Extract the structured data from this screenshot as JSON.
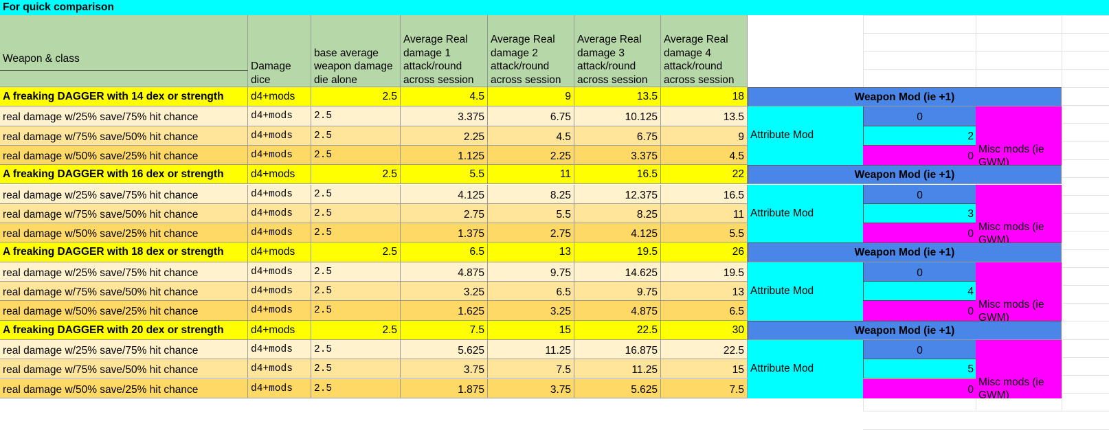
{
  "banner": "For quick comparison",
  "headers": {
    "weapon_class": "Weapon & class",
    "damage_dice": "Damage dice",
    "base_avg": "base average weapon damage die alone",
    "avg1": "Average Real damage 1 attack/round across session",
    "avg2": "Average Real damage 2 attack/round across session",
    "avg3": "Average Real damage 3 attack/round across session",
    "avg4": "Average Real damage 4 attack/round across session"
  },
  "mod_labels": {
    "weapon_mod": "Weapon Mod (ie +1)",
    "attribute_mod": "Attribute Mod",
    "misc_mods": "Misc mods (ie GWM)"
  },
  "colors": {
    "banner": "#00ffff",
    "header": "#b6d7a8",
    "main_row": "#ffff00",
    "sub_row_1": "#fff2cc",
    "sub_row_2": "#ffe599",
    "sub_row_3": "#ffd966",
    "weapon_mod": "#4a86e8",
    "attribute_mod": "#00ffff",
    "misc_mods": "#ff00ff"
  },
  "groups": [
    {
      "title": "A freaking DAGGER with 14 dex or strength",
      "dice": "d4+mods",
      "base": "2.5",
      "avg": [
        "4.5",
        "9",
        "13.5",
        "18"
      ],
      "weapon_mod_value": "0",
      "attribute_mod_value": "2",
      "misc_mods_value": "0",
      "rows": [
        {
          "label": "real damage w/25% save/75% hit chance",
          "dice": "d4+mods",
          "base": "2.5",
          "vals": [
            "3.375",
            "6.75",
            "10.125",
            "13.5"
          ]
        },
        {
          "label": "real damage w/75% save/50% hit chance",
          "dice": "d4+mods",
          "base": "2.5",
          "vals": [
            "2.25",
            "4.5",
            "6.75",
            "9"
          ]
        },
        {
          "label": "real damage w/50% save/25% hit chance",
          "dice": "d4+mods",
          "base": "2.5",
          "vals": [
            "1.125",
            "2.25",
            "3.375",
            "4.5"
          ]
        }
      ]
    },
    {
      "title": "A freaking DAGGER with 16 dex or strength",
      "dice": "d4+mods",
      "base": "2.5",
      "avg": [
        "5.5",
        "11",
        "16.5",
        "22"
      ],
      "weapon_mod_value": "0",
      "attribute_mod_value": "3",
      "misc_mods_value": "0",
      "rows": [
        {
          "label": "real damage w/25% save/75% hit chance",
          "dice": "d4+mods",
          "base": "2.5",
          "vals": [
            "4.125",
            "8.25",
            "12.375",
            "16.5"
          ]
        },
        {
          "label": "real damage w/75% save/50% hit chance",
          "dice": "d4+mods",
          "base": "2.5",
          "vals": [
            "2.75",
            "5.5",
            "8.25",
            "11"
          ]
        },
        {
          "label": "real damage w/50% save/25% hit chance",
          "dice": "d4+mods",
          "base": "2.5",
          "vals": [
            "1.375",
            "2.75",
            "4.125",
            "5.5"
          ]
        }
      ]
    },
    {
      "title": "A freaking DAGGER with 18 dex or strength",
      "dice": "d4+mods",
      "base": "2.5",
      "avg": [
        "6.5",
        "13",
        "19.5",
        "26"
      ],
      "weapon_mod_value": "0",
      "attribute_mod_value": "4",
      "misc_mods_value": "0",
      "rows": [
        {
          "label": "real damage w/25% save/75% hit chance",
          "dice": "d4+mods",
          "base": "2.5",
          "vals": [
            "4.875",
            "9.75",
            "14.625",
            "19.5"
          ]
        },
        {
          "label": "real damage w/75% save/50% hit chance",
          "dice": "d4+mods",
          "base": "2.5",
          "vals": [
            "3.25",
            "6.5",
            "9.75",
            "13"
          ]
        },
        {
          "label": "real damage w/50% save/25% hit chance",
          "dice": "d4+mods",
          "base": "2.5",
          "vals": [
            "1.625",
            "3.25",
            "4.875",
            "6.5"
          ]
        }
      ]
    },
    {
      "title": "A freaking DAGGER with 20 dex or strength",
      "dice": "d4+mods",
      "base": "2.5",
      "avg": [
        "7.5",
        "15",
        "22.5",
        "30"
      ],
      "weapon_mod_value": "0",
      "attribute_mod_value": "5",
      "misc_mods_value": "0",
      "rows": [
        {
          "label": "real damage w/25% save/75% hit chance",
          "dice": "d4+mods",
          "base": "2.5",
          "vals": [
            "5.625",
            "11.25",
            "16.875",
            "22.5"
          ]
        },
        {
          "label": "real damage w/75% save/50% hit chance",
          "dice": "d4+mods",
          "base": "2.5",
          "vals": [
            "3.75",
            "7.5",
            "11.25",
            "15"
          ]
        },
        {
          "label": "real damage w/50% save/25% hit chance",
          "dice": "d4+mods",
          "base": "2.5",
          "vals": [
            "1.875",
            "3.75",
            "5.625",
            "7.5"
          ]
        }
      ]
    }
  ]
}
